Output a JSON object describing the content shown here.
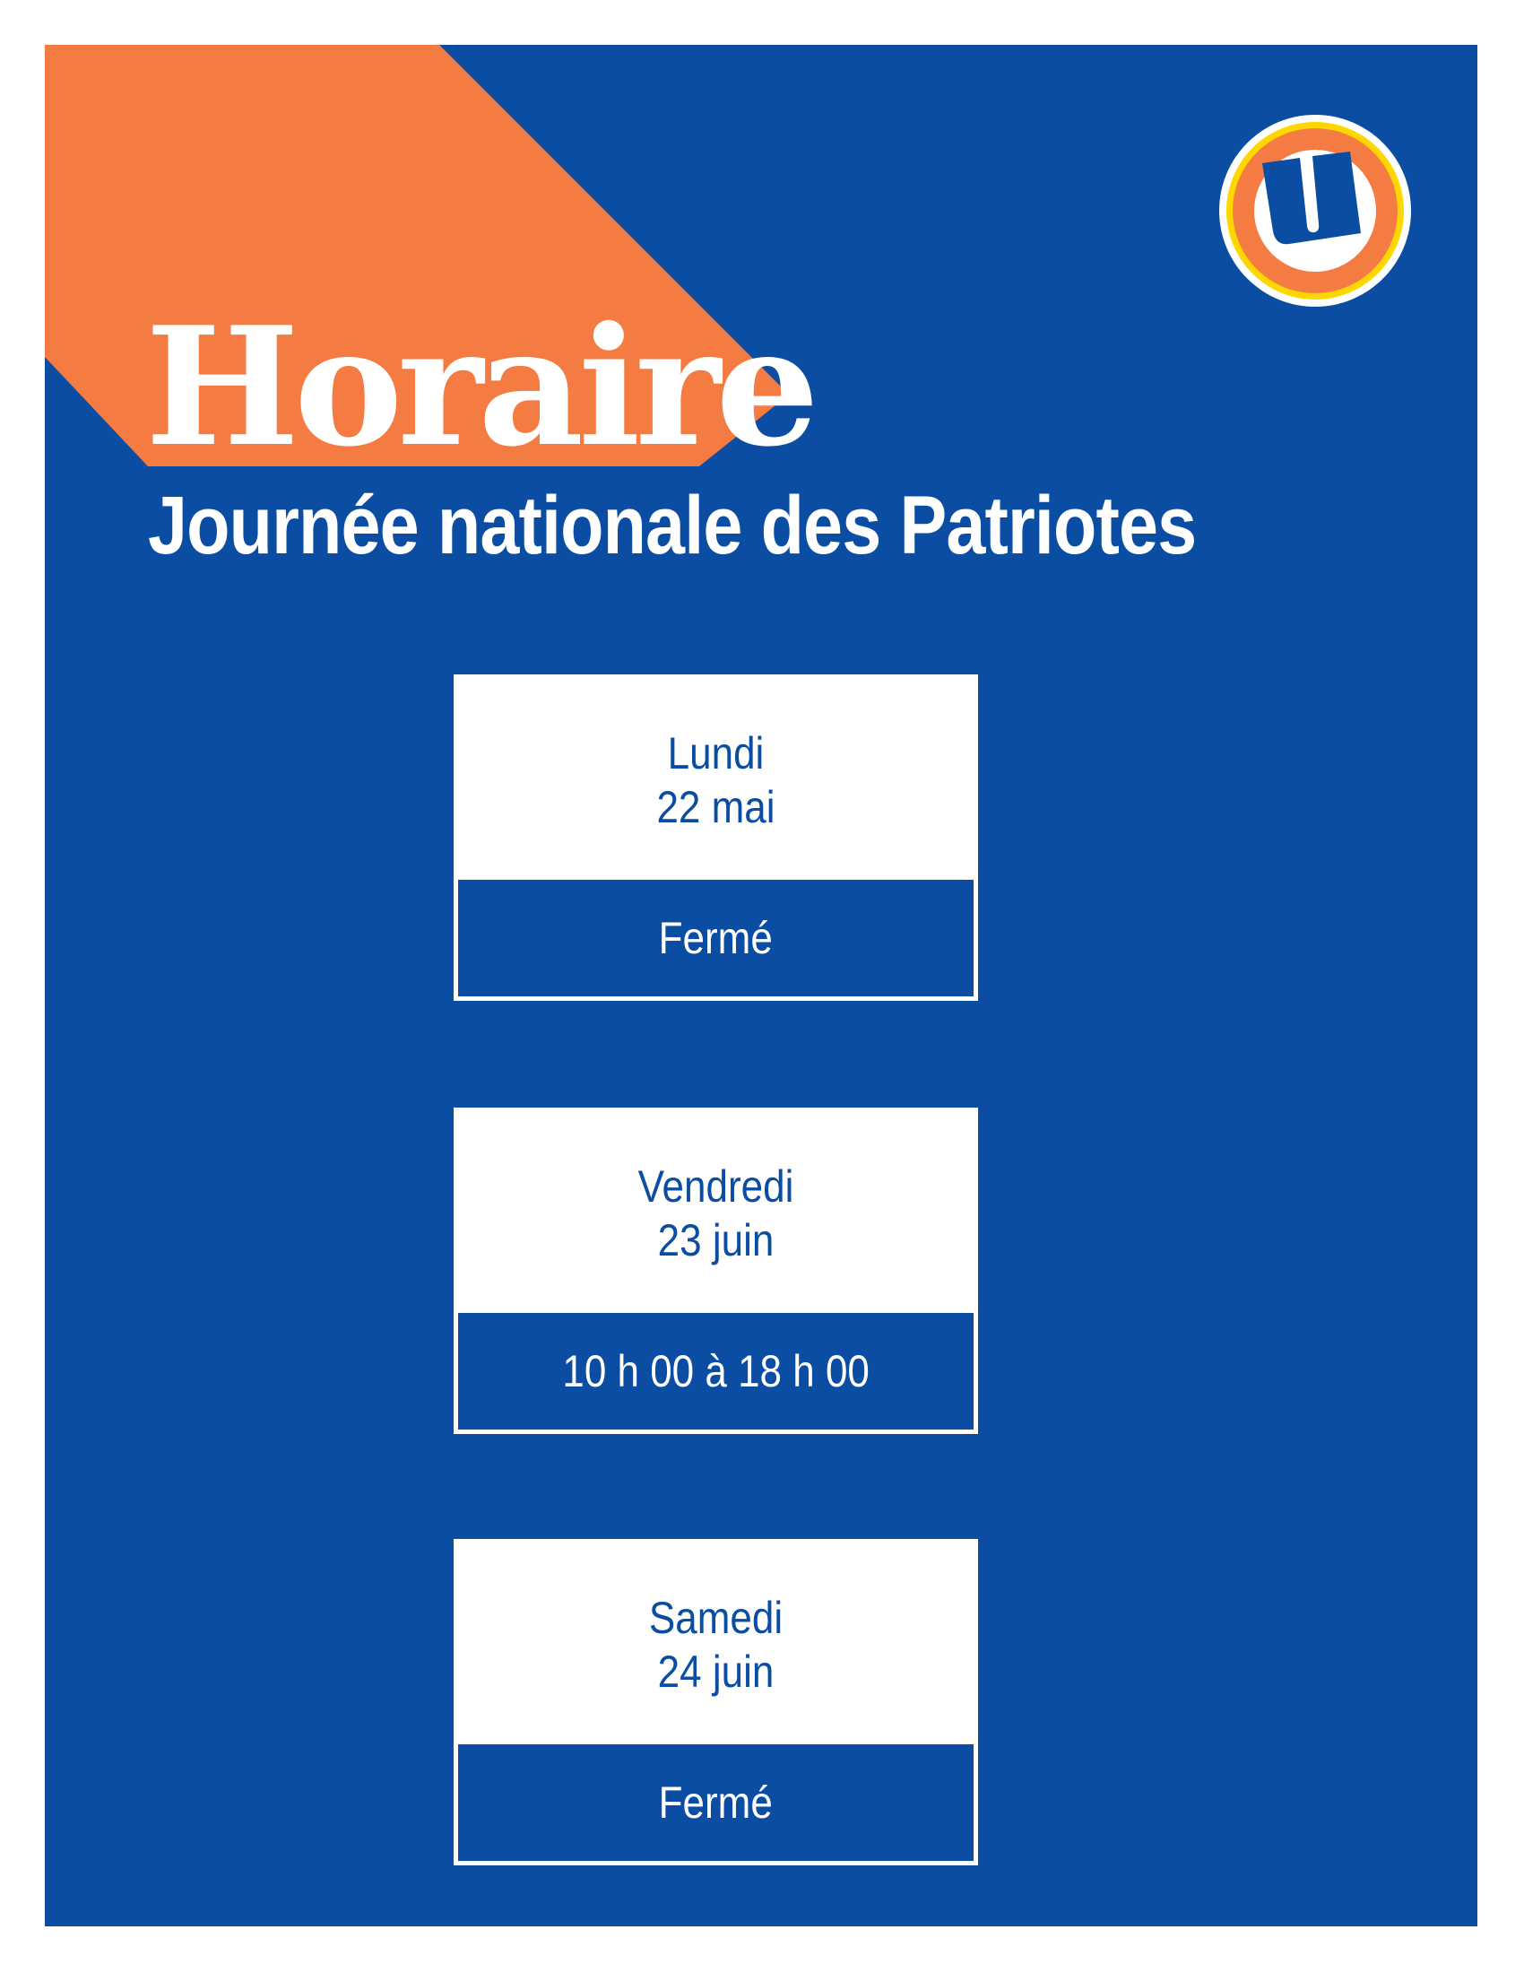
{
  "header": {
    "title": "Horaire",
    "subtitle": "Journée nationale des Patriotes"
  },
  "logo": {
    "name": "u-circle-logo",
    "letter": "U"
  },
  "colors": {
    "background": "#0a4da2",
    "accent": "#f47b42",
    "logo_ring": "#ffd700",
    "text": "#ffffff"
  },
  "schedule": [
    {
      "day": "Lundi",
      "date": "22 mai",
      "hours": "Fermé"
    },
    {
      "day": "Vendredi",
      "date": "23 juin",
      "hours": "10 h 00 à 18 h 00"
    },
    {
      "day": "Samedi",
      "date": "24 juin",
      "hours": "Fermé"
    }
  ]
}
